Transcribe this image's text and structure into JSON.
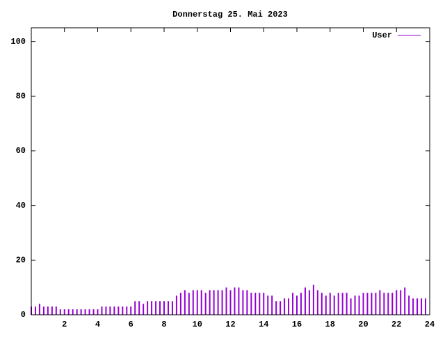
{
  "chart_data": {
    "type": "impulse",
    "title": "Donnerstag 25. Mai 2023",
    "series": [
      {
        "name": "User",
        "color": "#9400d3",
        "x": [
          0,
          0.25,
          0.5,
          0.75,
          1,
          1.25,
          1.5,
          1.75,
          2,
          2.25,
          2.5,
          2.75,
          3,
          3.25,
          3.5,
          3.75,
          4,
          4.25,
          4.5,
          4.75,
          5,
          5.25,
          5.5,
          5.75,
          6,
          6.25,
          6.5,
          6.75,
          7,
          7.25,
          7.5,
          7.75,
          8,
          8.25,
          8.5,
          8.75,
          9,
          9.25,
          9.5,
          9.75,
          10,
          10.25,
          10.5,
          10.75,
          11,
          11.25,
          11.5,
          11.75,
          12,
          12.25,
          12.5,
          12.75,
          13,
          13.25,
          13.5,
          13.75,
          14,
          14.25,
          14.5,
          14.75,
          15,
          15.25,
          15.5,
          15.75,
          16,
          16.25,
          16.5,
          16.75,
          17,
          17.25,
          17.5,
          17.75,
          18,
          18.25,
          18.5,
          18.75,
          19,
          19.25,
          19.5,
          19.75,
          20,
          20.25,
          20.5,
          20.75,
          21,
          21.25,
          21.5,
          21.75,
          22,
          22.25,
          22.5,
          22.75,
          23,
          23.25,
          23.5,
          23.75
        ],
        "values": [
          3,
          3,
          4,
          3,
          3,
          3,
          3,
          2,
          2,
          2,
          2,
          2,
          2,
          2,
          2,
          2,
          2,
          3,
          3,
          3,
          3,
          3,
          3,
          3,
          3,
          5,
          5,
          4,
          5,
          5,
          5,
          5,
          5,
          5,
          5,
          7,
          8,
          9,
          8,
          9,
          9,
          9,
          8,
          9,
          9,
          9,
          9,
          10,
          9,
          10,
          10,
          9,
          9,
          8,
          8,
          8,
          8,
          7,
          7,
          5,
          5,
          6,
          6,
          8,
          7,
          8,
          10,
          9,
          11,
          9,
          8,
          7,
          8,
          7,
          8,
          8,
          8,
          6,
          7,
          7,
          8,
          8,
          8,
          8,
          9,
          8,
          8,
          8,
          9,
          9,
          10,
          7,
          6,
          6,
          6,
          6
        ]
      }
    ],
    "xlim": [
      0,
      24
    ],
    "xticks": [
      2,
      4,
      6,
      8,
      10,
      12,
      14,
      16,
      18,
      20,
      22,
      24
    ],
    "ylim": [
      0,
      105
    ],
    "yticks": [
      0,
      20,
      40,
      60,
      80,
      100
    ],
    "legend": "top-right"
  }
}
